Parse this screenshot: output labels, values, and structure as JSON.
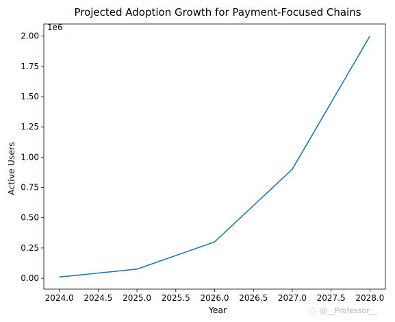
{
  "chart_data": {
    "type": "line",
    "title": "Projected Adoption Growth for Payment-Focused Chains",
    "xlabel": "Year",
    "ylabel": "Active Users",
    "y_offset_label": "1e6",
    "x": [
      2024,
      2025,
      2026,
      2027,
      2028
    ],
    "series": [
      {
        "values": [
          10000,
          75000,
          300000,
          900000,
          2000000
        ],
        "color": "#1f77b4"
      }
    ],
    "xlim": [
      2023.8,
      2028.2
    ],
    "ylim": [
      -90000,
      2100000
    ],
    "x_ticks": [
      2024.0,
      2024.5,
      2025.0,
      2025.5,
      2026.0,
      2026.5,
      2027.0,
      2027.5,
      2028.0
    ],
    "x_tick_labels": [
      "2024.0",
      "2024.5",
      "2025.0",
      "2025.5",
      "2026.0",
      "2026.5",
      "2027.0",
      "2027.5",
      "2028.0"
    ],
    "y_ticks": [
      0,
      250000,
      500000,
      750000,
      1000000,
      1250000,
      1500000,
      1750000,
      2000000
    ],
    "y_tick_labels": [
      "0.00",
      "0.25",
      "0.50",
      "0.75",
      "1.00",
      "1.25",
      "1.50",
      "1.75",
      "2.00"
    ],
    "grid": false,
    "legend": "none"
  },
  "watermark": "@__Professor__"
}
